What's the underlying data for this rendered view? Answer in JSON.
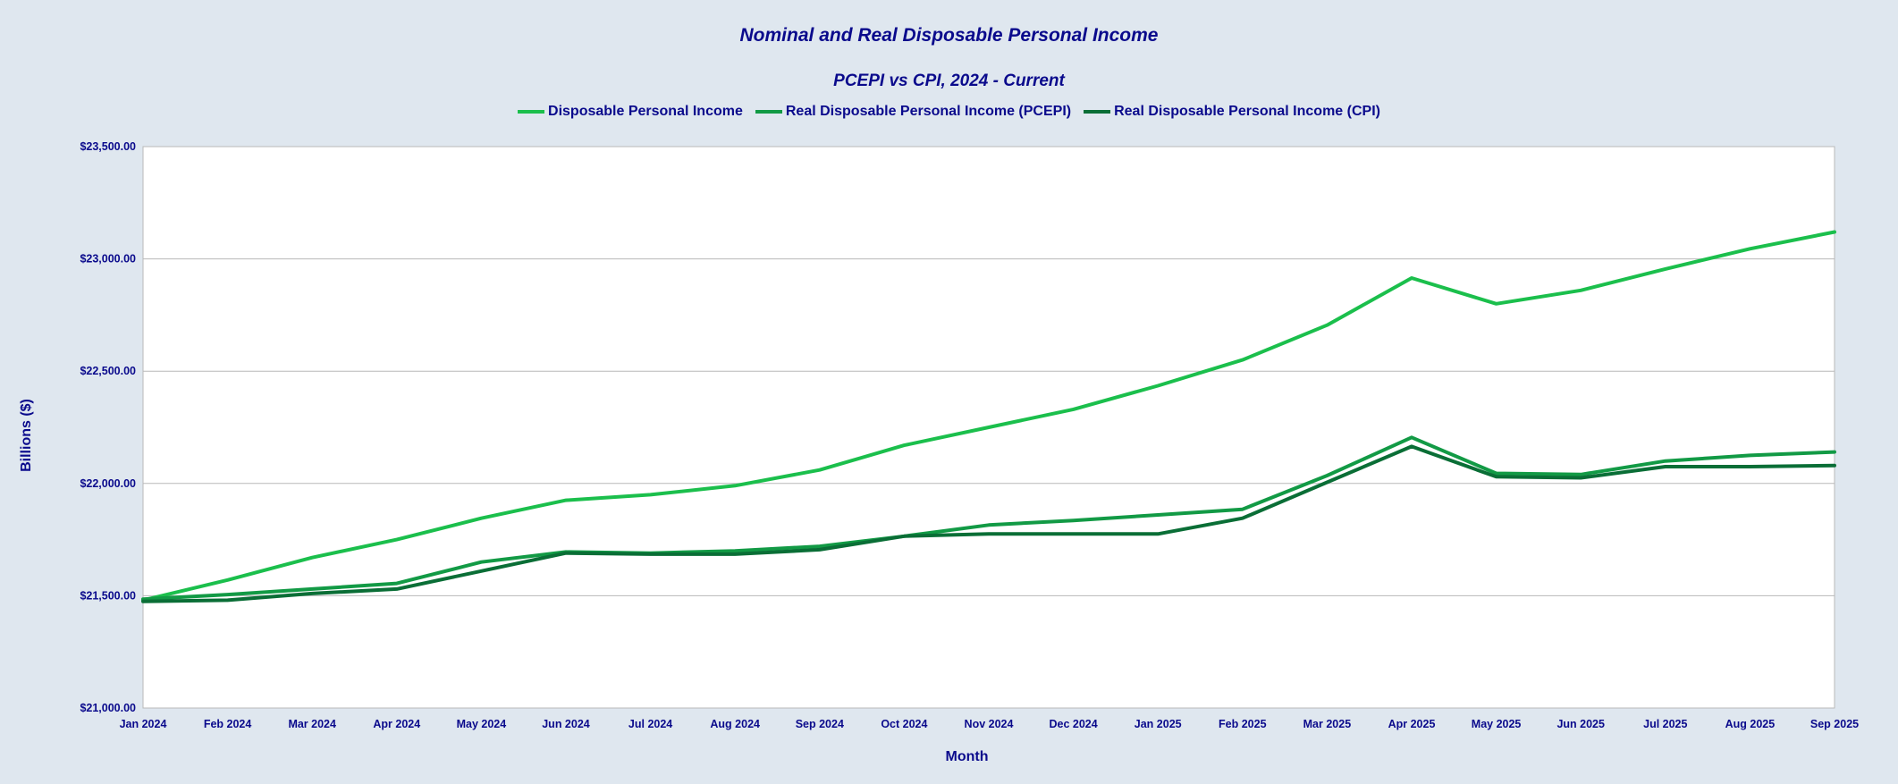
{
  "chart_data": {
    "type": "line",
    "title": "Nominal and Real Disposable Personal Income",
    "subtitle": "PCEPI vs CPI, 2024 - Current",
    "xlabel": "Month",
    "ylabel": "Billions ($)",
    "ylim": [
      21000,
      23500
    ],
    "yticks": [
      21000,
      21500,
      22000,
      22500,
      23000,
      23500
    ],
    "ytick_labels": [
      "$21,000.00",
      "$21,500.00",
      "$22,000.00",
      "$22,500.00",
      "$23,000.00",
      "$23,500.00"
    ],
    "grid": true,
    "legend_position": "top",
    "categories": [
      "Jan 2024",
      "Feb 2024",
      "Mar 2024",
      "Apr 2024",
      "May 2024",
      "Jun 2024",
      "Jul 2024",
      "Aug 2024",
      "Sep 2024",
      "Oct 2024",
      "Nov 2024",
      "Dec 2024",
      "Jan 2025",
      "Feb 2025",
      "Mar 2025",
      "Apr 2025",
      "May 2025",
      "Jun 2025",
      "Jul 2025",
      "Aug 2025",
      "Sep 2025"
    ],
    "series": [
      {
        "name": "Disposable Personal Income",
        "color": "#1bbf4c",
        "values": [
          21480,
          21570,
          21670,
          21750,
          21845,
          21925,
          21950,
          21990,
          22060,
          22170,
          22250,
          22330,
          22435,
          22550,
          22705,
          22915,
          22800,
          22860,
          22955,
          23045,
          23120
        ]
      },
      {
        "name": "Real Disposable Personal Income (PCEPI)",
        "color": "#129a45",
        "values": [
          21485,
          21505,
          21530,
          21555,
          21650,
          21695,
          21690,
          21700,
          21720,
          21765,
          21815,
          21835,
          21860,
          21885,
          22035,
          22205,
          22045,
          22040,
          22100,
          22125,
          22140
        ]
      },
      {
        "name": "Real Disposable Personal Income (CPI)",
        "color": "#0a6e36",
        "values": [
          21475,
          21480,
          21510,
          21530,
          21610,
          21690,
          21685,
          21685,
          21705,
          21765,
          21775,
          21775,
          21775,
          21845,
          22005,
          22165,
          22030,
          22025,
          22075,
          22075,
          22080
        ]
      }
    ]
  }
}
